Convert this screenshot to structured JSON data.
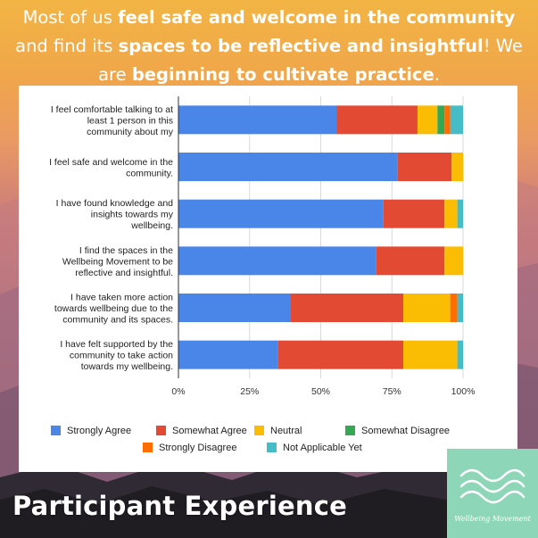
{
  "headline": {
    "line1_pre": "Most of us ",
    "line1_bold": "feel safe and welcome in the community",
    "line2_pre": "and find its ",
    "line2_bold": "spaces to be reflective and insightful",
    "line2_post": "! We",
    "line3_pre": "are ",
    "line3_bold": "beginning to cultivate practice",
    "line3_post": "."
  },
  "bottom_title": "Participant Experience",
  "logo": {
    "text": "Wellbeing Movement",
    "icon": "waves-icon"
  },
  "chart_data": {
    "type": "bar",
    "orientation": "horizontal",
    "stacked": "percent",
    "categories": [
      [
        "I feel comfortable talking to at",
        "least 1 person in this",
        "community about my"
      ],
      [
        "I feel safe and welcome in the",
        "community."
      ],
      [
        "I have found knowledge and",
        "insights towards my",
        "wellbeing."
      ],
      [
        "I find the spaces in the",
        "Wellbeing Movement to be",
        "reflective and insightful."
      ],
      [
        "I have taken more action",
        "towards wellbeing due to the",
        "community and its spaces."
      ],
      [
        "I have felt supported by the",
        "community to take action",
        "towards my wellbeing."
      ]
    ],
    "series": [
      {
        "name": "Strongly Agree",
        "color": "#4a86e8",
        "values": [
          55.5,
          77,
          72,
          69.5,
          39.5,
          35
        ]
      },
      {
        "name": "Somewhat Agree",
        "color": "#e34a33",
        "values": [
          28.5,
          19,
          21.5,
          24,
          39.5,
          44
        ]
      },
      {
        "name": "Neutral",
        "color": "#fbbc04",
        "values": [
          7,
          4,
          4.5,
          6.5,
          16.5,
          19
        ]
      },
      {
        "name": "Somewhat Disagree",
        "color": "#34a853",
        "values": [
          2.5,
          0,
          0,
          0,
          0,
          0
        ]
      },
      {
        "name": "Strongly Disagree",
        "color": "#ff6d01",
        "values": [
          2,
          0,
          0,
          0,
          2.5,
          0
        ]
      },
      {
        "name": "Not Applicable Yet",
        "color": "#46bdc6",
        "values": [
          4.5,
          0,
          2,
          0,
          2,
          2
        ]
      }
    ],
    "xticks": [
      "0%",
      "25%",
      "50%",
      "75%",
      "100%"
    ],
    "xlim": [
      0,
      100
    ],
    "legend": "bottom",
    "grid": true
  }
}
